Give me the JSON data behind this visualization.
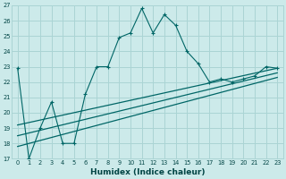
{
  "xlabel": "Humidex (Indice chaleur)",
  "bg_color": "#cceaea",
  "grid_color": "#aad4d4",
  "line_color": "#006666",
  "xlim": [
    -0.5,
    23.5
  ],
  "ylim": [
    17,
    27
  ],
  "xticks": [
    0,
    1,
    2,
    3,
    4,
    5,
    6,
    7,
    8,
    9,
    10,
    11,
    12,
    13,
    14,
    15,
    16,
    17,
    18,
    19,
    20,
    21,
    22,
    23
  ],
  "yticks": [
    17,
    18,
    19,
    20,
    21,
    22,
    23,
    24,
    25,
    26,
    27
  ],
  "series1_x": [
    0,
    1,
    2,
    3,
    4,
    5,
    6,
    7,
    8,
    9,
    10,
    11,
    12,
    13,
    14,
    15,
    16,
    17,
    18,
    19,
    20,
    21,
    22,
    23
  ],
  "series1_y": [
    22.9,
    17.0,
    19.0,
    20.7,
    18.0,
    18.0,
    21.2,
    23.0,
    23.0,
    24.9,
    25.2,
    26.8,
    25.2,
    26.4,
    25.7,
    24.0,
    23.2,
    22.0,
    22.2,
    22.0,
    22.2,
    22.4,
    23.0,
    22.9
  ],
  "series2_x": [
    0,
    23
  ],
  "series2_y": [
    19.2,
    22.9
  ],
  "series3_x": [
    0,
    23
  ],
  "series3_y": [
    18.5,
    22.6
  ],
  "series4_x": [
    0,
    23
  ],
  "series4_y": [
    17.8,
    22.3
  ]
}
